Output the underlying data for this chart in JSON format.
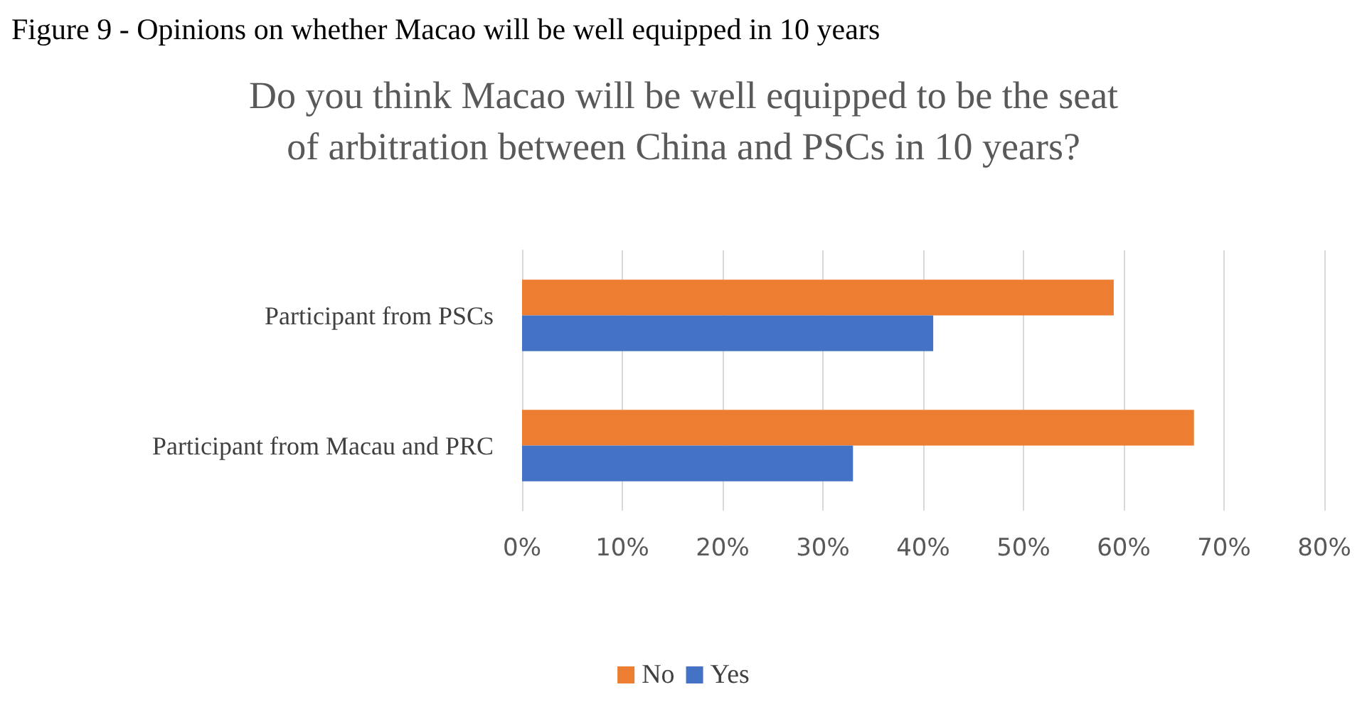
{
  "chart_data": {
    "type": "bar",
    "orientation": "horizontal",
    "title": "Do you think Macao will be well equipped to be the seat\nof arbitration between China and PSCs in 10 years?",
    "annotations": [
      "Figure 9 - Opinions on whether Macao will be well equipped in 10 years"
    ],
    "categories": [
      "Participant from PSCs",
      "Participant from Macau and PRC"
    ],
    "series": [
      {
        "name": "No",
        "color": "#ed7d31",
        "values": [
          59,
          67
        ]
      },
      {
        "name": "Yes",
        "color": "#4472c4",
        "values": [
          41,
          33
        ]
      }
    ],
    "xlim": [
      0,
      80
    ],
    "xticks": [
      {
        "value": 0,
        "label": "0%"
      },
      {
        "value": 10,
        "label": "10%"
      },
      {
        "value": 20,
        "label": "20%"
      },
      {
        "value": 30,
        "label": "30%"
      },
      {
        "value": 40,
        "label": "40%"
      },
      {
        "value": 50,
        "label": "50%"
      },
      {
        "value": 60,
        "label": "60%"
      },
      {
        "value": 70,
        "label": "70%"
      },
      {
        "value": 80,
        "label": "80%"
      }
    ],
    "grid": "x",
    "legend": "bottom"
  }
}
